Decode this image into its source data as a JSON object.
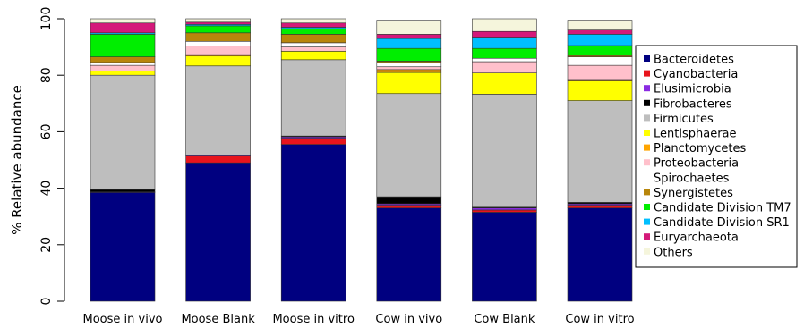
{
  "chart_data": {
    "type": "bar",
    "stacked": true,
    "ylabel": "% Relative abundance",
    "ylim": [
      0,
      100
    ],
    "yticks": [
      0,
      20,
      40,
      60,
      80,
      100
    ],
    "grid": false,
    "legend_position": "right",
    "categories": [
      "Moose in vivo",
      "Moose Blank",
      "Moose in vitro",
      "Cow in vivo",
      "Cow Blank",
      "Cow in vitro"
    ],
    "series": [
      {
        "name": "Bacteroidetes",
        "color": "#000080",
        "values": [
          38.5,
          49,
          55.5,
          33,
          31.5,
          33
        ]
      },
      {
        "name": "Cyanobacteria",
        "color": "#e8141c",
        "values": [
          0.2,
          2.5,
          2.2,
          1.0,
          0.8,
          1.0
        ]
      },
      {
        "name": "Elusimicrobia",
        "color": "#8a2be2",
        "values": [
          0,
          0.3,
          0.5,
          0.5,
          0.7,
          0.5
        ]
      },
      {
        "name": "Fibrobacteres",
        "color": "#000000",
        "values": [
          0.8,
          0,
          0.3,
          2.5,
          0.3,
          0.5
        ]
      },
      {
        "name": "Firmicutes",
        "color": "#bebebe",
        "values": [
          40.5,
          31.5,
          27,
          36.5,
          40,
          36
        ]
      },
      {
        "name": "Lentisphaerae",
        "color": "#ffff00",
        "values": [
          1.5,
          3.5,
          3.0,
          7.5,
          7.5,
          7.0
        ]
      },
      {
        "name": "Planctomycetes",
        "color": "#ffa500",
        "values": [
          0,
          0.5,
          0,
          1.0,
          0,
          0.5
        ]
      },
      {
        "name": "Proteobacteria",
        "color": "#ffc0cb",
        "values": [
          2.0,
          3.0,
          1.5,
          1.0,
          4.0,
          5.0
        ]
      },
      {
        "name": "Spirochaetes",
        "color": "#ffffff",
        "values": [
          1.0,
          1.7,
          1.5,
          1.5,
          1.2,
          3.0
        ]
      },
      {
        "name": "Synergistetes",
        "color": "#b8860b",
        "values": [
          2.0,
          3.0,
          3.0,
          0.5,
          0,
          0.5
        ]
      },
      {
        "name": "Candidate Division TM7",
        "color": "#00ee00",
        "values": [
          8.0,
          2.5,
          2.0,
          4.5,
          3.5,
          3.5
        ]
      },
      {
        "name": "Candidate Division SR1",
        "color": "#00bfff",
        "values": [
          0.5,
          0.5,
          0.5,
          3.5,
          4.0,
          4.0
        ]
      },
      {
        "name": "Euryarchaeota",
        "color": "#d4197a",
        "values": [
          3.5,
          0.8,
          1.5,
          1.5,
          2.0,
          1.5
        ]
      },
      {
        "name": "Others",
        "color": "#f5f5dc",
        "values": [
          1.5,
          1.2,
          1.5,
          5.0,
          4.5,
          3.5
        ]
      }
    ]
  }
}
